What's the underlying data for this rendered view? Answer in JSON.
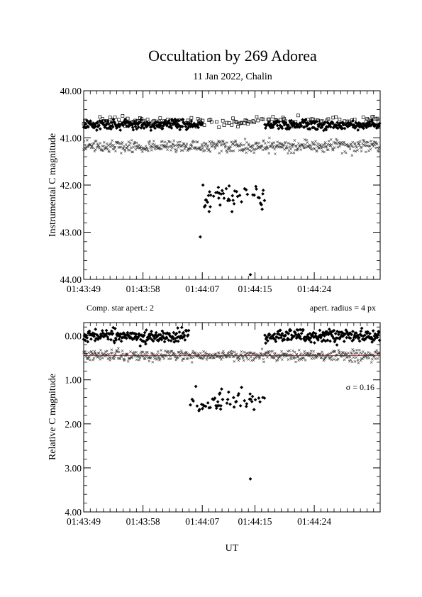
{
  "chart_data": {
    "type": "scatter",
    "title": "Occultation by 269 Adorea",
    "subtitle": "11 Jan 2022, Chalin",
    "xlabel": "UT",
    "x_tick_labels": [
      "01:43:49",
      "01:43:58",
      "01:44:07",
      "01:44:15",
      "01:44:24"
    ],
    "x_ticks_seconds_after_start": [
      0,
      9,
      18,
      26,
      35
    ],
    "x_range_seconds": [
      0,
      45
    ],
    "panels": [
      {
        "ylabel": "Instrumental C magnitude",
        "ylim": [
          44.0,
          40.0
        ],
        "y_tick_labels": [
          "40.00",
          "41.00",
          "42.00",
          "43.00",
          "44.00"
        ],
        "y_tick_values": [
          40,
          41,
          42,
          43,
          44
        ],
        "notes": {
          "left": "Comp. star apert.: 2",
          "right": "apert. radius = 4 px"
        },
        "series": [
          {
            "marker": "filled-diamond",
            "baseline_mag": 40.72,
            "scatter": 0.1,
            "dip": {
              "start_s": 18.0,
              "end_s": 27.5,
              "mag": 42.25,
              "scatter": 0.3
            }
          },
          {
            "marker": "open-square",
            "baseline_mag": 40.65,
            "scatter": 0.1
          },
          {
            "marker": "cross",
            "baseline_mag": 41.18,
            "scatter": 0.13
          }
        ],
        "outliers": [
          {
            "t": 25.3,
            "y": 43.9
          },
          {
            "t": 17.7,
            "y": 43.1
          }
        ]
      },
      {
        "ylabel": "Relative C magnitude",
        "ylim": [
          4.0,
          -0.3
        ],
        "y_tick_labels": [
          "0.00",
          "1.00",
          "2.00",
          "3.00",
          "4.00"
        ],
        "y_tick_values": [
          0,
          1,
          2,
          3,
          4
        ],
        "sigma_label": "σ = 0.16",
        "reference_line_mag": 0.45,
        "reference_line_color": "#b03030",
        "series": [
          {
            "marker": "filled-diamond",
            "baseline_mag": 0.0,
            "scatter": 0.15,
            "dip": {
              "start_s": 16.0,
              "end_s": 27.5,
              "mag": 1.5,
              "scatter": 0.32
            }
          },
          {
            "marker": "cross",
            "baseline_mag": 0.45,
            "scatter": 0.12
          }
        ],
        "outliers": [
          {
            "t": 25.3,
            "y": 3.25
          }
        ]
      }
    ]
  }
}
